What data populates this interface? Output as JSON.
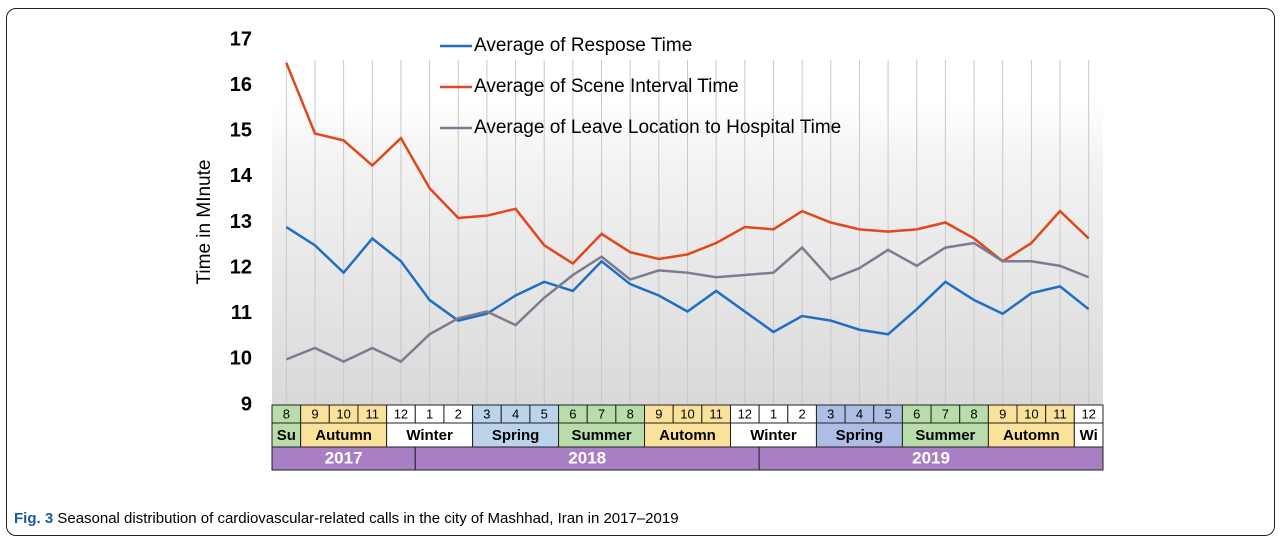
{
  "chart_data": {
    "type": "line",
    "y_label": "Time in MInute",
    "categories": [
      "8",
      "9",
      "10",
      "11",
      "12",
      "1",
      "2",
      "3",
      "4",
      "5",
      "6",
      "7",
      "8",
      "9",
      "10",
      "11",
      "12",
      "1",
      "2",
      "3",
      "4",
      "5",
      "6",
      "7",
      "8",
      "9",
      "10",
      "11",
      "12"
    ],
    "series": [
      {
        "name": "Average of Respose Time",
        "color": "#1f6fc4",
        "values": [
          12.9,
          12.5,
          11.9,
          12.65,
          12.15,
          11.3,
          10.85,
          11.0,
          11.4,
          11.7,
          11.5,
          12.15,
          11.65,
          11.4,
          11.05,
          11.5,
          11.05,
          10.6,
          10.95,
          10.85,
          10.65,
          10.55,
          11.1,
          11.7,
          11.3,
          11.0,
          11.45,
          11.6,
          11.1
        ]
      },
      {
        "name": "Average of Scene Interval Time",
        "color": "#e2471b",
        "values": [
          16.5,
          14.95,
          14.8,
          14.25,
          14.85,
          13.75,
          13.1,
          13.15,
          13.3,
          12.5,
          12.1,
          12.75,
          12.35,
          12.2,
          12.3,
          12.55,
          12.9,
          12.85,
          13.25,
          13.0,
          12.85,
          12.8,
          12.85,
          13.0,
          12.65,
          12.15,
          12.55,
          13.25,
          12.65
        ]
      },
      {
        "name": "Average of Leave Location to Hospital Time",
        "color": "#7f7a92",
        "values": [
          10.0,
          10.25,
          9.95,
          10.25,
          9.95,
          10.55,
          10.9,
          11.05,
          10.75,
          11.35,
          11.85,
          12.25,
          11.75,
          11.95,
          11.9,
          11.8,
          11.85,
          11.9,
          12.45,
          11.75,
          12.0,
          12.4,
          12.05,
          12.45,
          12.55,
          12.15,
          12.15,
          12.05,
          11.8
        ]
      }
    ],
    "ylim": [
      9,
      17
    ],
    "yticks": [
      9,
      10,
      11,
      12,
      13,
      14,
      15,
      16,
      17
    ],
    "grid": true,
    "seasons": [
      {
        "label": "Su",
        "span": 1,
        "color": "#b9dcab"
      },
      {
        "label": "Autumn",
        "span": 3,
        "color": "#fbe29a"
      },
      {
        "label": "Winter",
        "span": 3,
        "color": "#ffffff"
      },
      {
        "label": "Spring",
        "span": 3,
        "color": "#bcd3ec"
      },
      {
        "label": "Summer",
        "span": 3,
        "color": "#b9dcab"
      },
      {
        "label": "Automn",
        "span": 3,
        "color": "#fbe29a"
      },
      {
        "label": "Winter",
        "span": 3,
        "color": "#ffffff"
      },
      {
        "label": "Spring",
        "span": 3,
        "color": "#aebde6"
      },
      {
        "label": "Summer",
        "span": 3,
        "color": "#b9dcab"
      },
      {
        "label": "Automn",
        "span": 3,
        "color": "#fbe29a"
      },
      {
        "label": "Wi",
        "span": 1,
        "color": "#ffffff"
      }
    ],
    "years": [
      {
        "label": "2017",
        "span": 5
      },
      {
        "label": "2018",
        "span": 12
      },
      {
        "label": "2019",
        "span": 12
      }
    ],
    "year_color": "#a87fc4"
  },
  "caption": {
    "label": "Fig. 3",
    "text": "Seasonal distribution of cardiovascular-related calls in the city of Mashhad, Iran in 2017–2019"
  }
}
